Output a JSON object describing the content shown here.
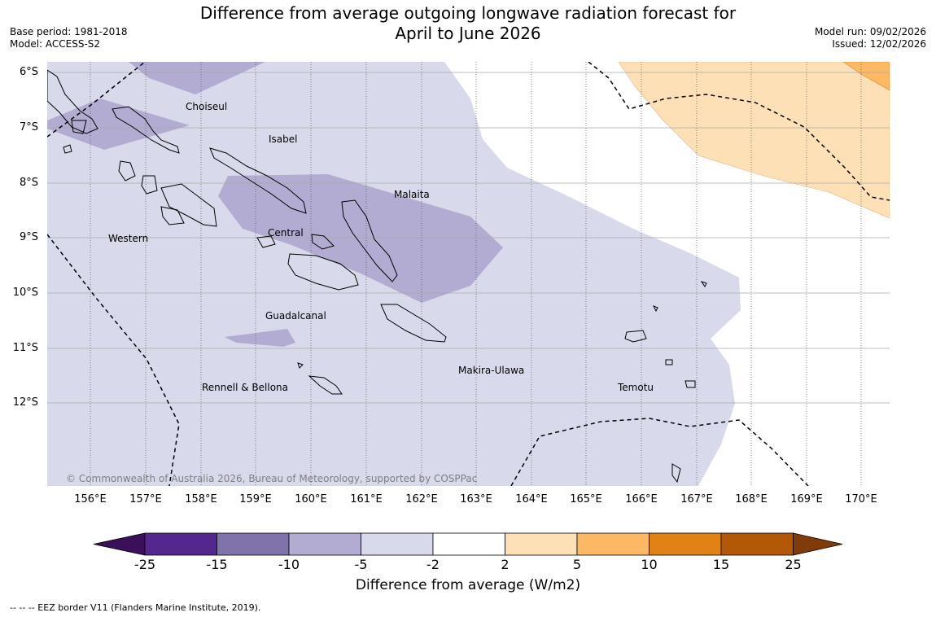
{
  "title_line1": "Difference from average outgoing longwave radiation forecast for",
  "title_line2": "April to June 2026",
  "meta_left": {
    "base_period": "Base period: 1981-2018",
    "model": "Model: ACCESS-S2"
  },
  "meta_right": {
    "model_run": "Model run: 09/02/2026",
    "issued": "Issued: 12/02/2026"
  },
  "lat_labels": [
    "6°S",
    "7°S",
    "8°S",
    "9°S",
    "10°S",
    "11°S",
    "12°S"
  ],
  "lon_labels": [
    "156°E",
    "157°E",
    "158°E",
    "159°E",
    "160°E",
    "161°E",
    "162°E",
    "163°E",
    "164°E",
    "165°E",
    "166°E",
    "167°E",
    "168°E",
    "169°E",
    "170°E"
  ],
  "regions": {
    "choiseul": "Choiseul",
    "isabel": "Isabel",
    "malaita": "Malaita",
    "western": "Western",
    "central": "Central",
    "guadalcanal": "Guadalcanal",
    "makira": "Makira-Ulawa",
    "rennell": "Rennell & Bellona",
    "temotu": "Temotu"
  },
  "copyright": "© Commonwealth of Australia 2026, Bureau of Meteorology, supported by COSPPac",
  "colorbar": {
    "labels": [
      "-25",
      "-15",
      "-10",
      "-5",
      "-2",
      "2",
      "5",
      "10",
      "15",
      "25"
    ],
    "colors": [
      "#3b0f5a",
      "#54278f",
      "#8073ac",
      "#b2abd2",
      "#d8daeb",
      "#ffffff",
      "#fee0b6",
      "#fdb863",
      "#e08214",
      "#b35806",
      "#7f3b08"
    ],
    "title": "Difference from average (W/m2)"
  },
  "footer": "--  --  -- EEZ border V11 (Flanders Marine Institute, 2019)."
}
